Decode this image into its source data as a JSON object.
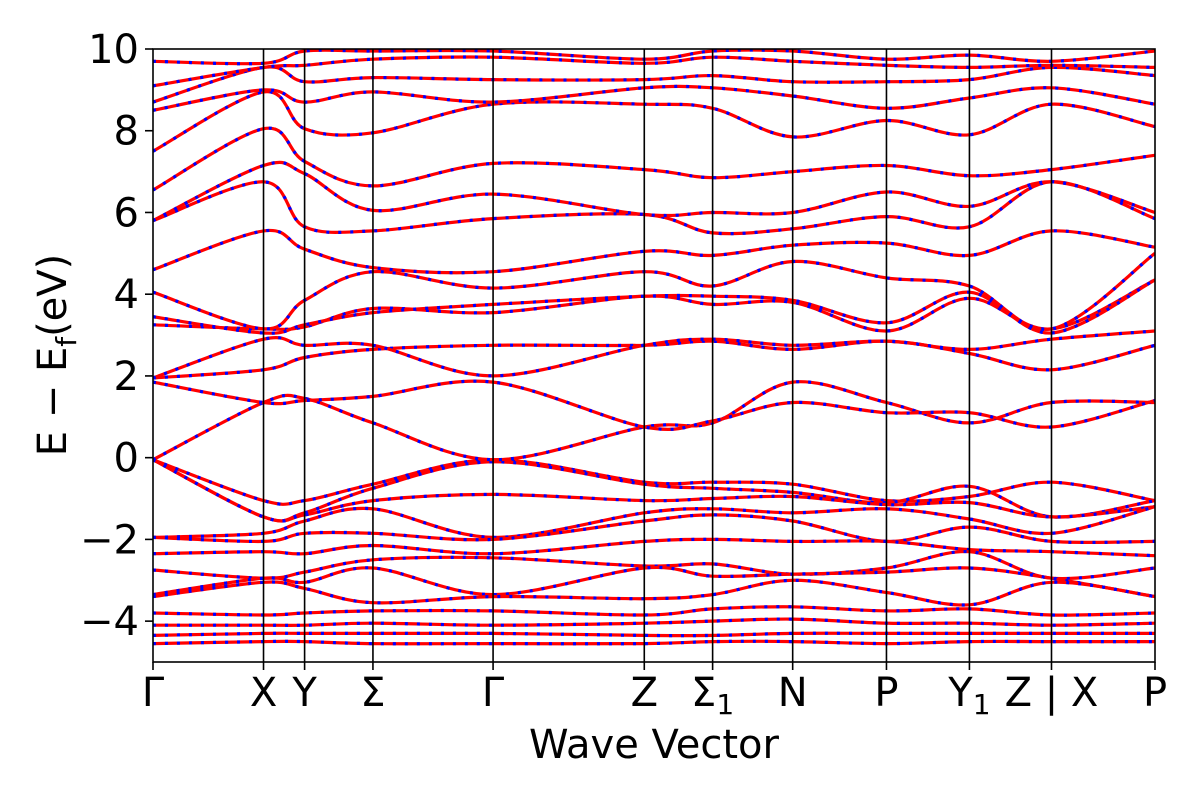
{
  "chart_data": {
    "type": "line",
    "title": "",
    "xlabel": "Wave Vector",
    "ylabel_main": "E − E",
    "ylabel_sub": "f",
    "ylabel_unit": "(eV)",
    "ylim": [
      -5,
      10
    ],
    "yticks": [
      {
        "value": -4,
        "label": "−4"
      },
      {
        "value": -2,
        "label": "−2"
      },
      {
        "value": 0,
        "label": "0"
      },
      {
        "value": 2,
        "label": "2"
      },
      {
        "value": 4,
        "label": "4"
      },
      {
        "value": 6,
        "label": "6"
      },
      {
        "value": 8,
        "label": "8"
      },
      {
        "value": 10,
        "label": "10"
      }
    ],
    "xlim": [
      0,
      1
    ],
    "kpoints": [
      {
        "label": "Γ",
        "x": 0.0
      },
      {
        "label": "X",
        "x": 0.1103
      },
      {
        "label": "Y",
        "x": 0.1513
      },
      {
        "label": "Σ",
        "x": 0.2195
      },
      {
        "label": "Γ",
        "x": 0.3394
      },
      {
        "label": "Z",
        "x": 0.4903
      },
      {
        "label": "Σ",
        "sub": "1",
        "x": 0.5585
      },
      {
        "label": "N",
        "x": 0.6384
      },
      {
        "label": "P",
        "x": 0.732
      },
      {
        "label": "Y",
        "sub": "1",
        "x": 0.8148
      },
      {
        "label": "Z | X",
        "x": 0.8967
      },
      {
        "label": "P",
        "x": 1.0
      }
    ],
    "grid": false,
    "series_colors": {
      "band": "#ff0000",
      "overlay": "#0000ff"
    },
    "bands_x": [
      0.0,
      0.1103,
      0.1513,
      0.2195,
      0.3394,
      0.4903,
      0.5585,
      0.6384,
      0.732,
      0.8148,
      0.8967,
      1.0
    ],
    "bands": [
      [
        -0.05,
        -1.05,
        -1.05,
        -0.65,
        -0.05,
        -0.6,
        -0.6,
        -0.65,
        -1.05,
        -0.95,
        -0.6,
        -1.05
      ],
      [
        -0.05,
        -1.45,
        -1.35,
        -0.75,
        -0.1,
        -0.65,
        -0.75,
        -0.85,
        -1.1,
        -0.7,
        -1.45,
        -1.05
      ],
      [
        -0.05,
        -1.45,
        -1.4,
        -1.05,
        -0.9,
        -1.05,
        -1.0,
        -0.95,
        -1.15,
        -1.1,
        -1.45,
        -1.2
      ],
      [
        -1.95,
        -1.85,
        -1.55,
        -1.25,
        -1.95,
        -1.35,
        -1.25,
        -1.35,
        -1.25,
        -1.5,
        -1.85,
        -1.2
      ],
      [
        -1.95,
        -2.05,
        -1.85,
        -1.85,
        -2.0,
        -1.55,
        -1.4,
        -1.55,
        -2.05,
        -1.7,
        -2.05,
        -2.05
      ],
      [
        -2.35,
        -2.3,
        -2.35,
        -2.15,
        -2.35,
        -2.05,
        -2.0,
        -2.05,
        -2.05,
        -2.25,
        -2.3,
        -2.4
      ],
      [
        -2.75,
        -2.95,
        -2.8,
        -2.5,
        -2.45,
        -2.65,
        -2.6,
        -2.85,
        -2.7,
        -2.3,
        -2.95,
        -2.7
      ],
      [
        -3.35,
        -2.95,
        -3.05,
        -2.7,
        -3.35,
        -2.7,
        -2.9,
        -2.85,
        -2.8,
        -2.7,
        -2.95,
        -3.4
      ],
      [
        -3.4,
        -3.05,
        -3.2,
        -3.55,
        -3.4,
        -3.45,
        -3.35,
        -3.0,
        -3.3,
        -3.6,
        -3.05,
        -3.4
      ],
      [
        -3.8,
        -3.85,
        -3.8,
        -3.75,
        -3.75,
        -3.85,
        -3.7,
        -3.65,
        -3.75,
        -3.7,
        -3.85,
        -3.8
      ],
      [
        -4.1,
        -4.1,
        -4.1,
        -4.05,
        -4.1,
        -4.05,
        -4.0,
        -3.95,
        -4.05,
        -4.05,
        -4.1,
        -4.05
      ],
      [
        -4.35,
        -4.3,
        -4.3,
        -4.3,
        -4.3,
        -4.35,
        -4.35,
        -4.3,
        -4.3,
        -4.3,
        -4.3,
        -4.3
      ],
      [
        -4.55,
        -4.5,
        -4.5,
        -4.55,
        -4.55,
        -4.55,
        -4.5,
        -4.5,
        -4.55,
        -4.5,
        -4.5,
        -4.5
      ],
      [
        -0.05,
        1.35,
        1.45,
        0.85,
        -0.05,
        0.75,
        0.85,
        1.85,
        1.35,
        0.85,
        1.35,
        1.35
      ],
      [
        1.85,
        1.35,
        1.4,
        1.5,
        1.85,
        0.75,
        0.9,
        1.35,
        1.1,
        1.1,
        0.75,
        1.4
      ],
      [
        1.95,
        2.15,
        2.45,
        2.65,
        2.75,
        2.75,
        2.85,
        2.65,
        2.85,
        2.55,
        2.15,
        2.75
      ],
      [
        1.95,
        2.9,
        2.75,
        2.75,
        2.0,
        2.75,
        2.9,
        2.75,
        2.85,
        2.65,
        2.9,
        3.1
      ],
      [
        3.25,
        3.15,
        3.2,
        3.65,
        3.55,
        3.95,
        3.75,
        3.8,
        3.1,
        3.9,
        3.15,
        4.35
      ],
      [
        3.45,
        3.05,
        3.25,
        3.55,
        3.75,
        3.95,
        3.95,
        3.85,
        3.3,
        4.05,
        3.05,
        4.35
      ],
      [
        4.05,
        3.15,
        3.85,
        4.55,
        4.15,
        4.55,
        4.2,
        4.8,
        4.4,
        4.2,
        3.15,
        5.0
      ],
      [
        4.6,
        5.55,
        5.1,
        4.65,
        4.55,
        5.05,
        4.95,
        5.2,
        5.25,
        4.95,
        5.55,
        5.15
      ],
      [
        5.8,
        6.75,
        5.65,
        5.55,
        5.85,
        5.95,
        5.5,
        5.6,
        5.9,
        5.65,
        6.75,
        5.85
      ],
      [
        5.8,
        7.15,
        6.95,
        6.05,
        6.45,
        5.95,
        6.0,
        6.0,
        6.5,
        6.15,
        6.75,
        6.0
      ],
      [
        6.55,
        8.05,
        7.25,
        6.65,
        7.2,
        7.05,
        6.85,
        7.0,
        7.15,
        6.9,
        7.05,
        7.4
      ],
      [
        7.5,
        8.95,
        8.05,
        7.95,
        8.65,
        8.65,
        8.55,
        7.85,
        8.25,
        7.9,
        8.65,
        8.1
      ],
      [
        8.5,
        9.0,
        8.7,
        8.95,
        8.7,
        9.05,
        9.05,
        8.85,
        8.55,
        8.8,
        9.05,
        8.65
      ],
      [
        8.7,
        9.55,
        9.2,
        9.3,
        9.25,
        9.25,
        9.35,
        9.2,
        9.2,
        9.25,
        9.55,
        9.35
      ],
      [
        9.1,
        9.55,
        9.6,
        9.75,
        9.8,
        9.65,
        9.8,
        9.7,
        9.6,
        9.55,
        9.6,
        9.55
      ],
      [
        9.7,
        9.65,
        9.95,
        9.95,
        9.95,
        9.75,
        9.95,
        9.95,
        9.75,
        9.85,
        9.7,
        9.95
      ]
    ]
  }
}
